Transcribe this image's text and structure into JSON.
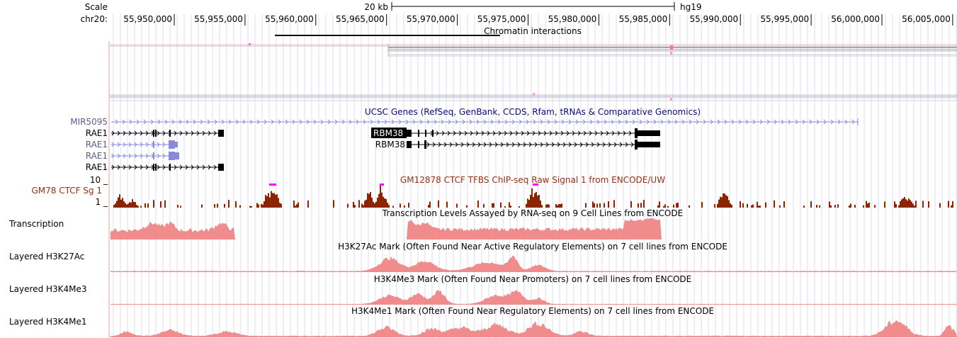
{
  "ruler": {
    "scale_label": "Scale",
    "scale_value": "20 kb",
    "assembly": "hg19",
    "chrom_label": "chr20:",
    "ticks": [
      "55,950,000",
      "55,955,000",
      "55,960,000",
      "55,965,000",
      "55,970,000",
      "55,975,000",
      "55,980,000",
      "55,985,000",
      "55,990,000",
      "55,995,000",
      "56,000,000",
      "56,005,000"
    ]
  },
  "tracks": {
    "chromatin": {
      "title": "Chromatin interactions"
    },
    "ucsc_genes": {
      "title": "UCSC Genes (RefSeq, GenBank, CCDS, Rfam, tRNAs & Comparative Genomics)",
      "left_labels": [
        "MIR5095",
        "RAE1",
        "RAE1",
        "RAE1",
        "RAE1"
      ],
      "rbm38_labels": [
        "RBM38",
        "RBM38"
      ]
    },
    "ctcf": {
      "label": "GM78 CTCF Sg 1",
      "title": "GM12878 CTCF TFBS ChIP-seq Raw Signal 1 from ENCODE/UW",
      "max_tick": "10 _",
      "min_tick": "1 _"
    },
    "transcription": {
      "label": "Transcription",
      "title": "Transcription Levels Assayed by RNA-seq on 9 Cell Lines from ENCODE"
    },
    "h3k27ac": {
      "label": "Layered H3K27Ac",
      "title": "H3K27Ac Mark (Often Found Near Active Regulatory Elements) on 7 cell lines from ENCODE"
    },
    "h3k4me3": {
      "label": "Layered H3K4Me3",
      "title": "H3K4Me3 Mark (Often Found Near Promoters) on 7 cell lines from ENCODE"
    },
    "h3k4me1": {
      "label": "Layered H3K4Me1",
      "title": "H3K4Me1 Mark (Often Found Near Regulatory Elements) on 7 cell lines from ENCODE"
    }
  },
  "colors": {
    "gene_dark": "#000000",
    "gene_light": "#8a8adc",
    "mir_label": "#5a5a8a",
    "ucsc_title": "#0c0c78",
    "ctcf": "#8b2500",
    "ctcf_label": "#9a2e10",
    "clip_marker": "#ff00ff",
    "signal_pink": "#f08080",
    "gridline": "#d6d6f0"
  }
}
